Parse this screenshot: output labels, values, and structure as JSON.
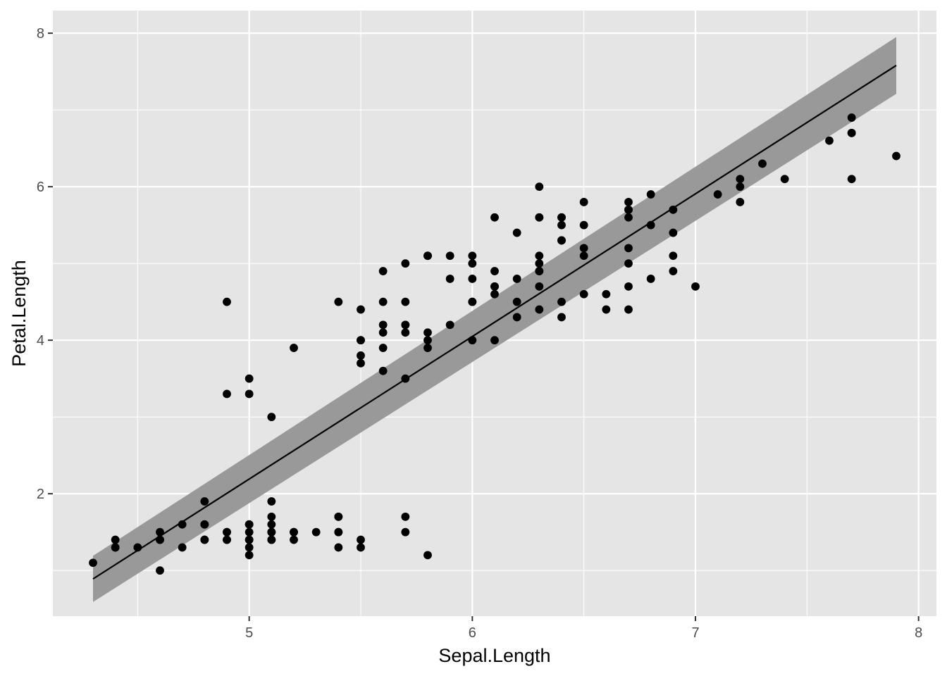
{
  "chart_data": {
    "type": "scatter",
    "title": "",
    "xlabel": "Sepal.Length",
    "ylabel": "Petal.Length",
    "xlim": [
      4.12,
      8.08
    ],
    "ylim": [
      0.405,
      8.295
    ],
    "x_ticks": [
      5,
      6,
      7,
      8
    ],
    "x_tick_labels": [
      "5",
      "6",
      "7",
      "8"
    ],
    "y_ticks": [
      2,
      4,
      6,
      8
    ],
    "y_tick_labels": [
      "2",
      "4",
      "6",
      "8"
    ],
    "x_minor_ticks": [
      4.5,
      5.5,
      6.5,
      7.5
    ],
    "y_minor_ticks": [
      1,
      3,
      5,
      7
    ],
    "grid": true,
    "legend": "none",
    "colors": {
      "panel_background": "#e5e5e5",
      "grid": "#ffffff",
      "points": "#000000",
      "fit_line": "#000000",
      "confidence_band": "#999999",
      "tick_text": "#4d4d4d",
      "axis_title": "#000000"
    },
    "series": [
      {
        "type": "scatter",
        "x": [
          5.1,
          4.9,
          4.7,
          4.6,
          5.0,
          5.4,
          4.6,
          5.0,
          4.4,
          4.9,
          5.4,
          4.8,
          4.8,
          4.3,
          5.8,
          5.7,
          5.4,
          5.1,
          5.7,
          5.1,
          5.4,
          5.1,
          4.6,
          5.1,
          4.8,
          5.0,
          5.0,
          5.2,
          5.2,
          4.7,
          4.8,
          5.4,
          5.2,
          5.5,
          4.9,
          5.0,
          5.5,
          4.9,
          4.4,
          5.1,
          5.0,
          4.5,
          4.4,
          5.0,
          5.1,
          4.8,
          5.1,
          4.6,
          5.3,
          5.0,
          7.0,
          6.4,
          6.9,
          5.5,
          6.5,
          5.7,
          6.3,
          4.9,
          6.6,
          5.2,
          5.0,
          5.9,
          6.0,
          6.1,
          5.6,
          6.7,
          5.6,
          5.8,
          6.2,
          5.6,
          5.9,
          6.1,
          6.3,
          6.1,
          6.4,
          6.6,
          6.8,
          6.7,
          6.0,
          5.7,
          5.5,
          5.5,
          5.8,
          6.0,
          5.4,
          6.0,
          6.7,
          6.3,
          5.6,
          5.5,
          5.5,
          6.1,
          5.8,
          5.0,
          5.6,
          5.7,
          5.7,
          6.2,
          5.1,
          5.7,
          6.3,
          5.8,
          7.1,
          6.3,
          6.5,
          7.6,
          4.9,
          7.3,
          6.7,
          7.2,
          6.5,
          6.4,
          6.8,
          5.7,
          5.8,
          6.4,
          6.5,
          7.7,
          7.7,
          6.0,
          6.9,
          5.6,
          7.7,
          6.3,
          6.7,
          7.2,
          6.2,
          6.1,
          6.4,
          7.2,
          7.4,
          7.9,
          6.4,
          6.3,
          6.1,
          7.7,
          6.3,
          6.4,
          6.0,
          6.9,
          6.7,
          6.9,
          5.8,
          6.8,
          6.7,
          6.7,
          6.3,
          6.5,
          6.2,
          5.9
        ],
        "y": [
          1.4,
          1.4,
          1.3,
          1.5,
          1.4,
          1.7,
          1.4,
          1.5,
          1.4,
          1.5,
          1.5,
          1.6,
          1.4,
          1.1,
          1.2,
          1.5,
          1.3,
          1.4,
          1.7,
          1.5,
          1.7,
          1.5,
          1.0,
          1.7,
          1.9,
          1.6,
          1.6,
          1.5,
          1.4,
          1.6,
          1.6,
          1.5,
          1.5,
          1.4,
          1.5,
          1.2,
          1.3,
          1.4,
          1.3,
          1.5,
          1.3,
          1.3,
          1.3,
          1.6,
          1.9,
          1.4,
          1.6,
          1.4,
          1.5,
          1.4,
          4.7,
          4.5,
          4.9,
          4.0,
          4.6,
          4.5,
          4.7,
          3.3,
          4.6,
          3.9,
          3.5,
          4.2,
          4.0,
          4.7,
          3.6,
          4.4,
          4.5,
          4.1,
          4.5,
          3.9,
          4.8,
          4.0,
          4.9,
          4.7,
          4.3,
          4.4,
          4.8,
          5.0,
          4.5,
          3.5,
          3.8,
          3.7,
          3.9,
          5.1,
          4.5,
          4.5,
          4.7,
          4.4,
          4.1,
          4.0,
          4.4,
          4.6,
          4.0,
          3.3,
          4.2,
          4.2,
          4.2,
          4.3,
          3.0,
          4.1,
          6.0,
          5.1,
          5.9,
          5.6,
          5.8,
          6.6,
          4.5,
          6.3,
          5.8,
          6.1,
          5.1,
          5.3,
          5.5,
          5.0,
          5.1,
          5.3,
          5.5,
          6.7,
          6.9,
          5.0,
          5.7,
          4.9,
          6.7,
          4.9,
          5.7,
          6.0,
          4.8,
          4.9,
          5.6,
          5.8,
          6.1,
          6.4,
          5.6,
          5.1,
          5.6,
          6.1,
          5.6,
          5.5,
          4.8,
          5.4,
          5.6,
          5.1,
          5.1,
          5.9,
          5.7,
          5.2,
          5.0,
          5.2,
          5.4,
          5.1
        ]
      },
      {
        "type": "line",
        "x": [
          4.3,
          7.9
        ],
        "y": [
          0.89,
          7.58
        ]
      },
      {
        "type": "area",
        "x": [
          4.3,
          7.9
        ],
        "y_lower": [
          0.59,
          7.21
        ],
        "y_upper": [
          1.19,
          7.95
        ]
      }
    ]
  }
}
